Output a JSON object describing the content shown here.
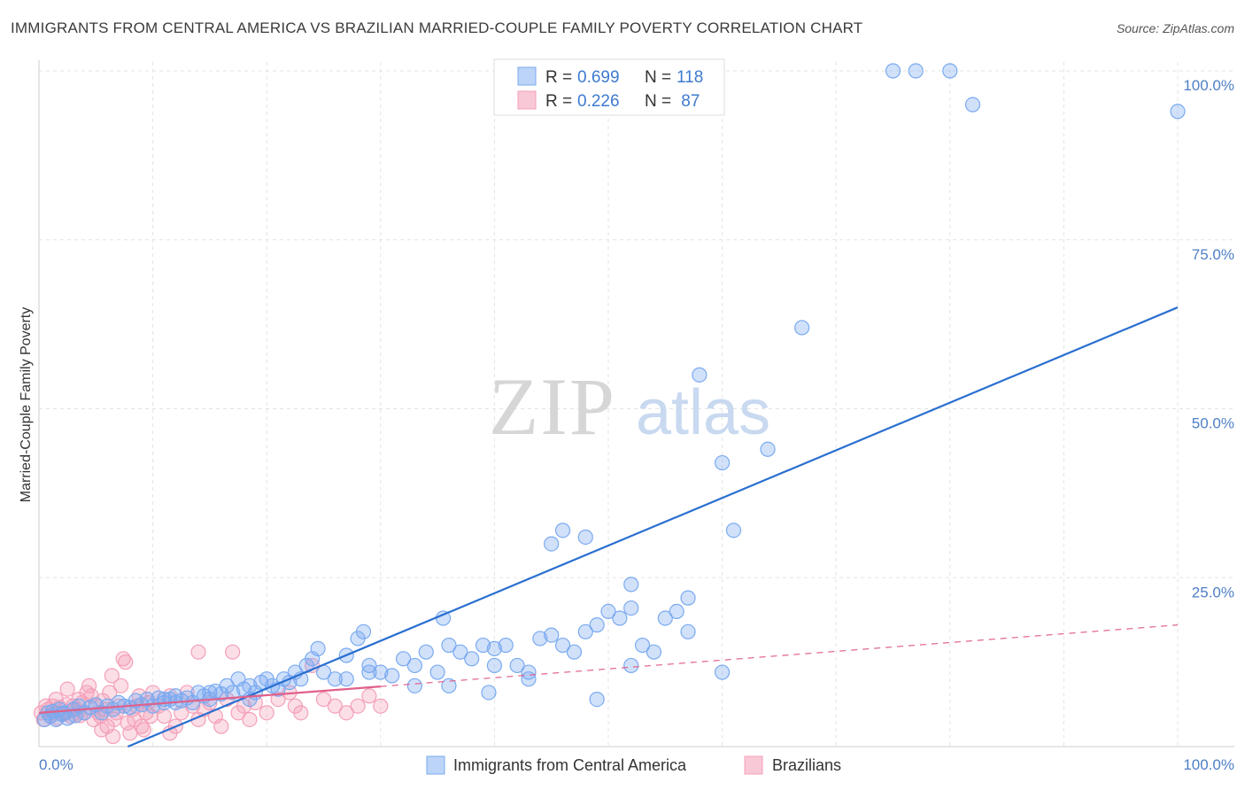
{
  "title": "IMMIGRANTS FROM CENTRAL AMERICA VS BRAZILIAN MARRIED-COUPLE FAMILY POVERTY CORRELATION CHART",
  "source": "Source: ZipAtlas.com",
  "colors": {
    "series1": "#7aaaf0",
    "series1_line": "#2a6fd0",
    "series2": "#f4a0b8",
    "series2_line": "#e0608a",
    "tick": "#4f7fc6"
  },
  "legend_top": {
    "rows": [
      {
        "r_label": "R = ",
        "r_value": "0.699",
        "n_label": "N = ",
        "n_value": "118"
      },
      {
        "r_label": "R = ",
        "r_value": "0.226",
        "n_label": "N = ",
        "n_value": " 87"
      }
    ]
  },
  "chart_data": {
    "type": "scatter",
    "title": "IMMIGRANTS FROM CENTRAL AMERICA VS BRAZILIAN MARRIED-COUPLE FAMILY POVERTY CORRELATION CHART",
    "xlabel": "",
    "ylabel": "Married-Couple Family Poverty",
    "xlim": [
      0,
      100
    ],
    "ylim": [
      0,
      100
    ],
    "x_ticks": [
      "0.0%",
      "100.0%"
    ],
    "y_ticks": [
      {
        "value": 25,
        "label": "25.0%"
      },
      {
        "value": 50,
        "label": "50.0%"
      },
      {
        "value": 75,
        "label": "75.0%"
      },
      {
        "value": 100,
        "label": "100.0%"
      }
    ],
    "watermark": {
      "part1": "ZIP",
      "part2": "atlas"
    },
    "series": [
      {
        "name": "Immigrants from Central America",
        "R": 0.699,
        "N": 118,
        "trend": {
          "x0": 0,
          "y0": -5.5,
          "x1": 100,
          "y1": 65
        },
        "points": [
          [
            0.5,
            4
          ],
          [
            0.8,
            5
          ],
          [
            1,
            4.5
          ],
          [
            1.2,
            5.2
          ],
          [
            1.5,
            4
          ],
          [
            1.8,
            5.5
          ],
          [
            2,
            4.8
          ],
          [
            2.2,
            5
          ],
          [
            2.5,
            4.2
          ],
          [
            3,
            5.5
          ],
          [
            3.2,
            4.6
          ],
          [
            3.5,
            6
          ],
          [
            4,
            5
          ],
          [
            4.5,
            5.8
          ],
          [
            5,
            6.2
          ],
          [
            5.5,
            5
          ],
          [
            6,
            6
          ],
          [
            6.5,
            5.5
          ],
          [
            7,
            6.5
          ],
          [
            7.5,
            6
          ],
          [
            8,
            5.8
          ],
          [
            8.5,
            6.8
          ],
          [
            9,
            6.2
          ],
          [
            9.5,
            7
          ],
          [
            10,
            6
          ],
          [
            10.5,
            7.2
          ],
          [
            11,
            6.5
          ],
          [
            11.5,
            7
          ],
          [
            12,
            7.5
          ],
          [
            12.5,
            6.8
          ],
          [
            13,
            7.2
          ],
          [
            13.5,
            6.5
          ],
          [
            14,
            8
          ],
          [
            14.5,
            7.5
          ],
          [
            15,
            7
          ],
          [
            15.5,
            8.2
          ],
          [
            16,
            7.8
          ],
          [
            16.5,
            9
          ],
          [
            17,
            8
          ],
          [
            17.5,
            10
          ],
          [
            18,
            8.5
          ],
          [
            18.5,
            9
          ],
          [
            19,
            8
          ],
          [
            19.5,
            9.5
          ],
          [
            20,
            10
          ],
          [
            20.5,
            9
          ],
          [
            21,
            8.5
          ],
          [
            21.5,
            10
          ],
          [
            22,
            9.5
          ],
          [
            22.5,
            11
          ],
          [
            23,
            10
          ],
          [
            23.5,
            12
          ],
          [
            24,
            13
          ],
          [
            24.5,
            14.5
          ],
          [
            25,
            11
          ],
          [
            26,
            10
          ],
          [
            27,
            13.5
          ],
          [
            28,
            16
          ],
          [
            29,
            12
          ],
          [
            30,
            11
          ],
          [
            31,
            10.5
          ],
          [
            32,
            13
          ],
          [
            33,
            12
          ],
          [
            34,
            14
          ],
          [
            35,
            11
          ],
          [
            36,
            15
          ],
          [
            37,
            14
          ],
          [
            38,
            13
          ],
          [
            39,
            15
          ],
          [
            40,
            14.5
          ],
          [
            41,
            15
          ],
          [
            42,
            12
          ],
          [
            43,
            11
          ],
          [
            44,
            16
          ],
          [
            45,
            16.5
          ],
          [
            46,
            15
          ],
          [
            47,
            14
          ],
          [
            48,
            17
          ],
          [
            49,
            18
          ],
          [
            50,
            20
          ],
          [
            51,
            19
          ],
          [
            52,
            20.5
          ],
          [
            53,
            15
          ],
          [
            54,
            14
          ],
          [
            55,
            19
          ],
          [
            56,
            20
          ],
          [
            28.5,
            17
          ],
          [
            35.5,
            19
          ],
          [
            36,
            9
          ],
          [
            39.5,
            8
          ],
          [
            40,
            12
          ],
          [
            45,
            30
          ],
          [
            46,
            32
          ],
          [
            48,
            31
          ],
          [
            52,
            24
          ],
          [
            57,
            22
          ],
          [
            58,
            55
          ],
          [
            60,
            42
          ],
          [
            61,
            32
          ],
          [
            64,
            44
          ],
          [
            67,
            62
          ],
          [
            75,
            100
          ],
          [
            77,
            100
          ],
          [
            80,
            100
          ],
          [
            82,
            95
          ],
          [
            100,
            94
          ],
          [
            49,
            7
          ],
          [
            43,
            10
          ],
          [
            57,
            17
          ],
          [
            60,
            11
          ],
          [
            52,
            12
          ],
          [
            33,
            9
          ],
          [
            29,
            11
          ],
          [
            27,
            10
          ],
          [
            15,
            8
          ],
          [
            18.5,
            7
          ],
          [
            11,
            7
          ],
          [
            12,
            6.5
          ]
        ]
      },
      {
        "name": "Brazilians",
        "R": 0.226,
        "N": 87,
        "trend": {
          "x0": 0,
          "y0": 5,
          "x1": 100,
          "y1": 18
        },
        "solid_until_x": 30,
        "points": [
          [
            0.2,
            5
          ],
          [
            0.4,
            4
          ],
          [
            0.6,
            6
          ],
          [
            0.8,
            5.5
          ],
          [
            1,
            4.5
          ],
          [
            1.2,
            6
          ],
          [
            1.4,
            5
          ],
          [
            1.6,
            4.2
          ],
          [
            1.8,
            5.8
          ],
          [
            2,
            5
          ],
          [
            2.2,
            4.8
          ],
          [
            2.4,
            6.2
          ],
          [
            2.6,
            5.2
          ],
          [
            2.8,
            4.5
          ],
          [
            3,
            6
          ],
          [
            3.2,
            5.5
          ],
          [
            3.4,
            5
          ],
          [
            3.6,
            4.6
          ],
          [
            3.8,
            6.5
          ],
          [
            4,
            5
          ],
          [
            4.2,
            8
          ],
          [
            4.4,
            9
          ],
          [
            4.6,
            7.5
          ],
          [
            4.8,
            4
          ],
          [
            5,
            6
          ],
          [
            5.2,
            5
          ],
          [
            5.4,
            4.5
          ],
          [
            5.6,
            6.8
          ],
          [
            5.8,
            5.5
          ],
          [
            6,
            3
          ],
          [
            6.2,
            8
          ],
          [
            6.4,
            10.5
          ],
          [
            6.6,
            4
          ],
          [
            6.8,
            5
          ],
          [
            7,
            6
          ],
          [
            7.2,
            9
          ],
          [
            7.4,
            13
          ],
          [
            7.6,
            12.5
          ],
          [
            7.8,
            3.5
          ],
          [
            8,
            2
          ],
          [
            8.2,
            5.5
          ],
          [
            8.4,
            4
          ],
          [
            8.6,
            6
          ],
          [
            8.8,
            7.5
          ],
          [
            9,
            3
          ],
          [
            9.2,
            2.5
          ],
          [
            9.4,
            5
          ],
          [
            9.6,
            6.5
          ],
          [
            9.8,
            4.5
          ],
          [
            10,
            8
          ],
          [
            10.5,
            6
          ],
          [
            11,
            4.5
          ],
          [
            11.5,
            7.5
          ],
          [
            12,
            3
          ],
          [
            12.5,
            5
          ],
          [
            13,
            8
          ],
          [
            13.5,
            6
          ],
          [
            14,
            4
          ],
          [
            14.5,
            5.5
          ],
          [
            15,
            6.5
          ],
          [
            15.5,
            4.5
          ],
          [
            16,
            3
          ],
          [
            16.5,
            7
          ],
          [
            17,
            14
          ],
          [
            17.5,
            5
          ],
          [
            18,
            6
          ],
          [
            18.5,
            4
          ],
          [
            19,
            6.5
          ],
          [
            20,
            5
          ],
          [
            21,
            7
          ],
          [
            22,
            8
          ],
          [
            22.5,
            6
          ],
          [
            23,
            5
          ],
          [
            24,
            12
          ],
          [
            25,
            7
          ],
          [
            26,
            6
          ],
          [
            27,
            5
          ],
          [
            28,
            6
          ],
          [
            29,
            7.5
          ],
          [
            30,
            6
          ],
          [
            1.5,
            7
          ],
          [
            2.5,
            8.5
          ],
          [
            3.5,
            7
          ],
          [
            5.5,
            2.5
          ],
          [
            6.5,
            1.5
          ],
          [
            11.5,
            2
          ],
          [
            14,
            14
          ]
        ]
      }
    ]
  },
  "legend_bottom": {
    "items": [
      "Immigrants from Central America",
      "Brazilians"
    ]
  }
}
